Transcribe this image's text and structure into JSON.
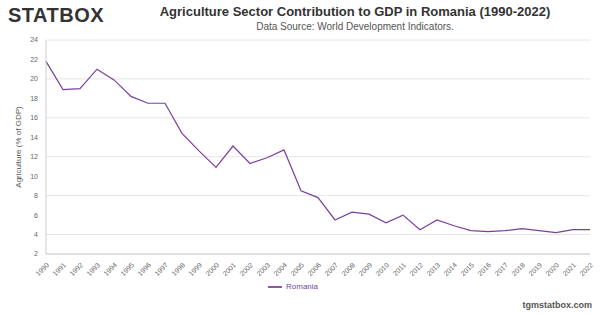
{
  "chart_data": {
    "type": "line",
    "title": "Agriculture Sector Contribution to GDP in Romania (1990-2022)",
    "subtitle": "Data Source: World Development Indicators.",
    "logo": "STATBOX",
    "source_credit": "tgmstatbox.com",
    "y_label": "Agriculture (% of GDP)",
    "categories": [
      "1990",
      "1991",
      "1992",
      "1993",
      "1994",
      "1995",
      "1996",
      "1997",
      "1998",
      "1999",
      "2000",
      "2001",
      "2002",
      "2003",
      "2004",
      "2005",
      "2006",
      "2007",
      "2008",
      "2009",
      "2010",
      "2011",
      "2012",
      "2013",
      "2014",
      "2015",
      "2016",
      "2017",
      "2018",
      "2019",
      "2020",
      "2021",
      "2022"
    ],
    "series": [
      {
        "name": "Romania",
        "color": "#7b3f9e",
        "values": [
          21.8,
          18.9,
          19.0,
          21.0,
          19.9,
          18.2,
          17.5,
          17.5,
          14.4,
          12.6,
          10.9,
          13.1,
          11.3,
          11.9,
          12.7,
          8.5,
          7.8,
          5.5,
          6.3,
          6.1,
          5.2,
          6.0,
          4.5,
          5.5,
          4.9,
          4.4,
          4.3,
          4.4,
          4.6,
          4.4,
          4.2,
          4.5,
          4.5
        ]
      }
    ],
    "ylim": [
      2,
      24
    ],
    "yticks": [
      2,
      4,
      6,
      8,
      10,
      12,
      14,
      16,
      18,
      20,
      22,
      24
    ],
    "grid": true,
    "legend": "bottom"
  }
}
